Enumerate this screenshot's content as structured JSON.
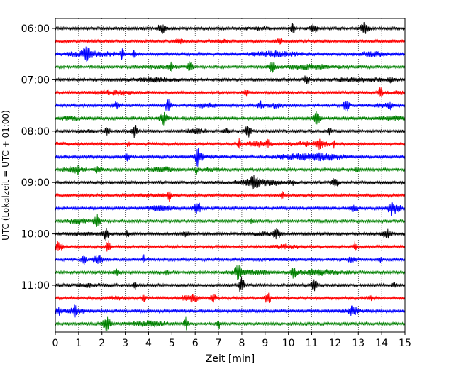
{
  "chart_data": {
    "type": "line",
    "title": "",
    "xlabel": "Zeit  [min]",
    "ylabel": "UTC (Lokalzeit = UTC + 01:00)",
    "xlim": [
      0,
      15
    ],
    "x_ticks": [
      0,
      1,
      2,
      3,
      4,
      5,
      6,
      7,
      8,
      9,
      10,
      11,
      12,
      13,
      14,
      15
    ],
    "x_tick_labels": [
      "0",
      "1",
      "2",
      "3",
      "4",
      "5",
      "6",
      "7",
      "8",
      "9",
      "10",
      "11",
      "12",
      "13",
      "14",
      "15"
    ],
    "y_tick_labels": [
      "06:00",
      "07:00",
      "08:00",
      "09:00",
      "10:00",
      "11:00"
    ],
    "y_tick_trace_index": [
      0,
      4,
      8,
      12,
      16,
      20
    ],
    "trace_start_times": [
      "06:00",
      "06:15",
      "06:30",
      "06:45",
      "07:00",
      "07:15",
      "07:30",
      "07:45",
      "08:00",
      "08:15",
      "08:30",
      "08:45",
      "09:00",
      "09:15",
      "09:30",
      "09:45",
      "10:00",
      "10:15",
      "10:30",
      "10:45",
      "11:00",
      "11:15",
      "11:30",
      "11:45"
    ],
    "trace_duration_min": 15,
    "colors": [
      "#000000",
      "#ff0000",
      "#0000ff",
      "#008000"
    ],
    "grid": "vertical dotted",
    "legend": "none"
  }
}
